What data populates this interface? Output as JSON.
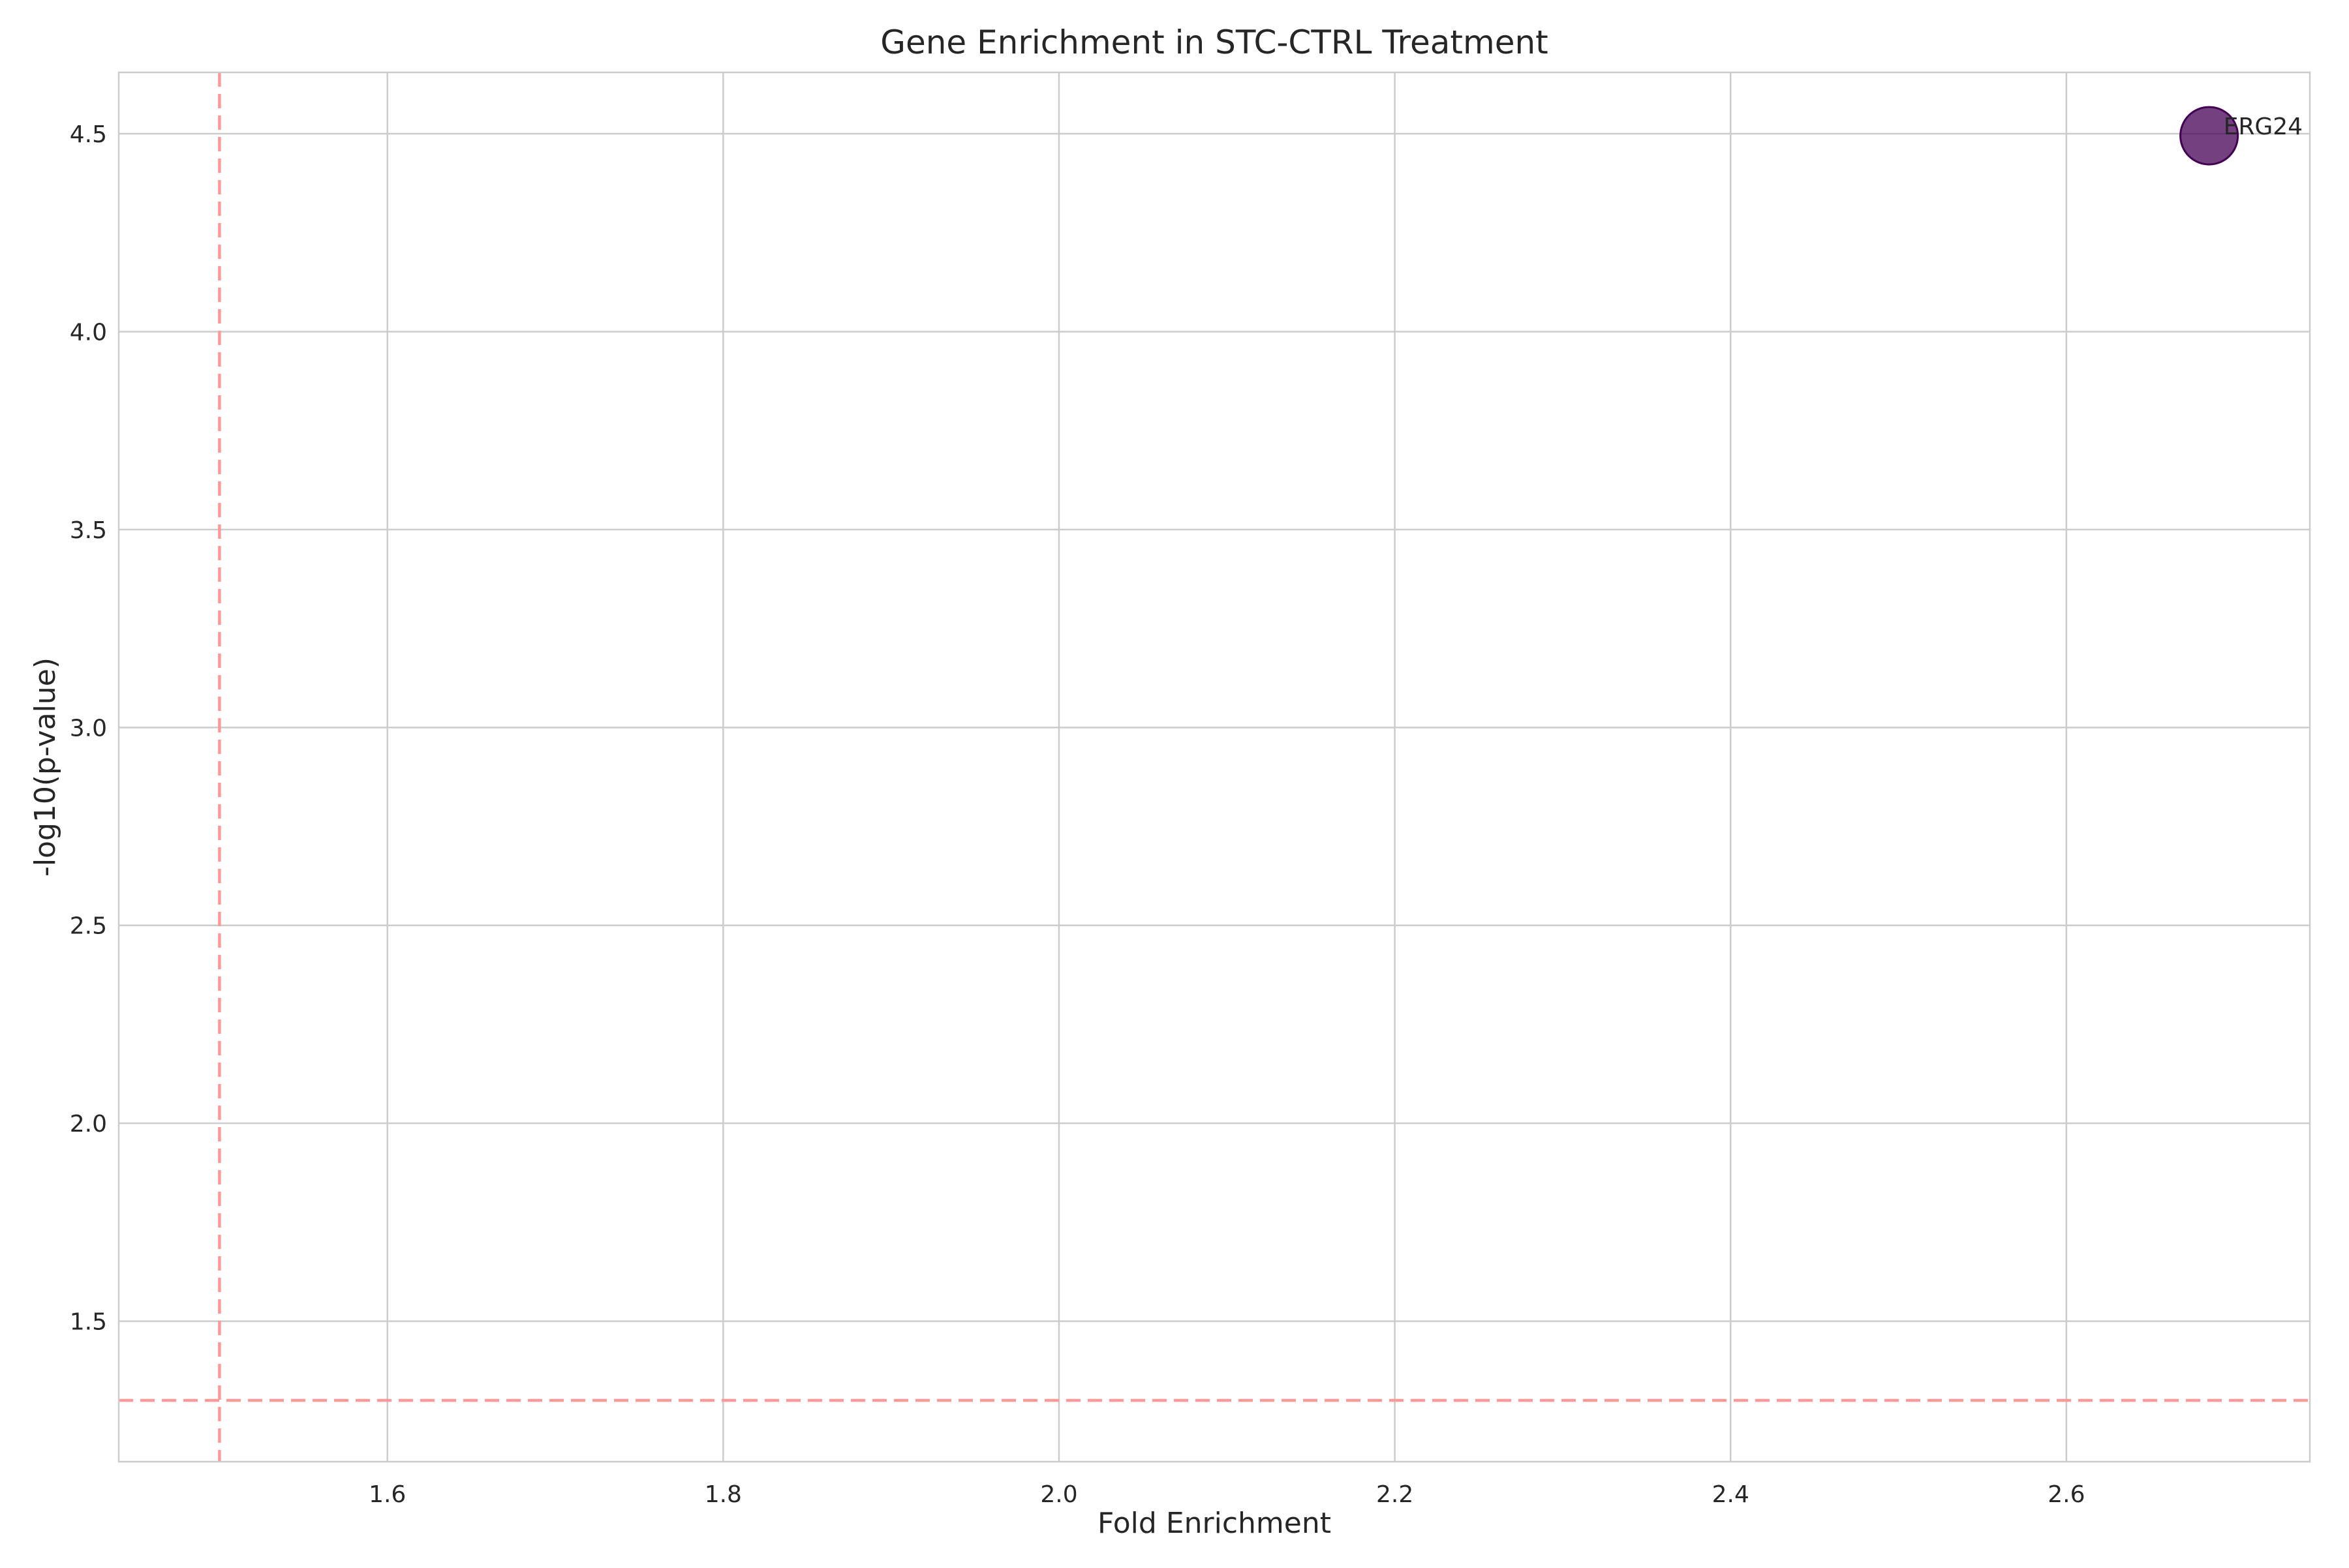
{
  "chart_data": {
    "type": "scatter",
    "title": "Gene Enrichment in STC-CTRL Treatment",
    "xlabel": "Fold Enrichment",
    "ylabel": "-log10(p-value)",
    "xlim": [
      1.44,
      2.745
    ],
    "ylim": [
      1.145,
      4.655
    ],
    "xticks": [
      1.6,
      1.8,
      2.0,
      2.2,
      2.4,
      2.6
    ],
    "yticks": [
      1.5,
      2.0,
      2.5,
      3.0,
      3.5,
      4.0,
      4.5
    ],
    "grid": true,
    "points": [
      {
        "label": "ERG24",
        "x": 2.685,
        "y": 4.495,
        "color": "#440154"
      }
    ],
    "reference_lines": [
      {
        "orientation": "vertical",
        "value": 1.5,
        "color": "#ff9999",
        "style": "dashed"
      },
      {
        "orientation": "horizontal",
        "value": 1.3,
        "color": "#ff9999",
        "style": "dashed"
      }
    ]
  }
}
